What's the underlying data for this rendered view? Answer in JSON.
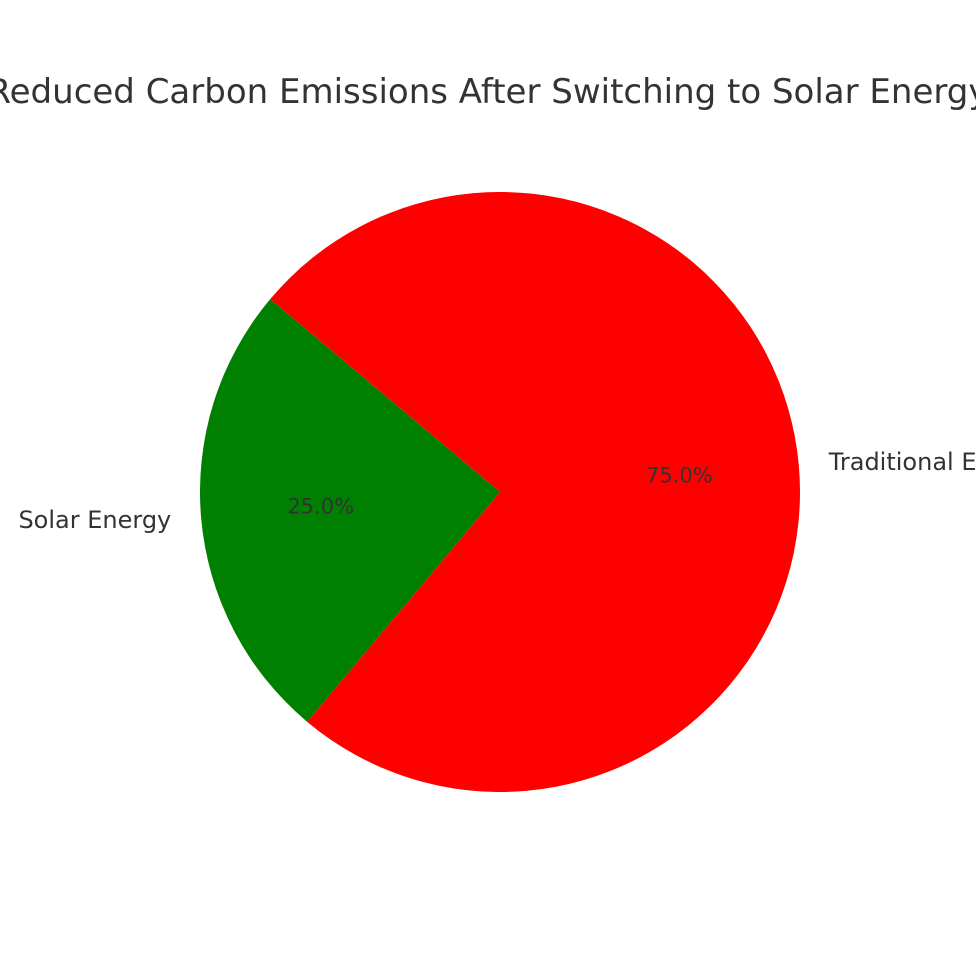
{
  "chart_data": {
    "type": "pie",
    "title": "Reduced Carbon Emissions After Switching to Solar Energy",
    "categories": [
      "Solar Energy",
      "Traditional Energy"
    ],
    "values": [
      25,
      75
    ],
    "percent_labels": [
      "25.0%",
      "75.0%"
    ],
    "colors": [
      "#008000",
      "#ff0000"
    ],
    "start_angle_deg": 140,
    "direction": "counterclockwise",
    "legend": "none"
  }
}
